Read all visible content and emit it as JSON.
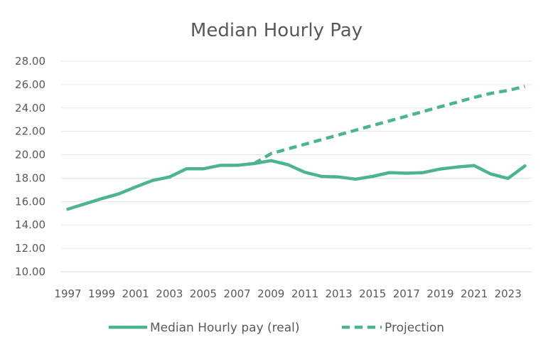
{
  "chart_data": {
    "type": "line",
    "title": "Median Hourly Pay",
    "xlabel": "",
    "ylabel": "",
    "ylim": [
      10,
      28
    ],
    "y_ticks": [
      "10.00",
      "12.00",
      "14.00",
      "16.00",
      "18.00",
      "20.00",
      "22.00",
      "24.00",
      "26.00",
      "28.00"
    ],
    "x_ticks": [
      "1997",
      "1999",
      "2001",
      "2003",
      "2005",
      "2007",
      "2009",
      "2011",
      "2013",
      "2015",
      "2017",
      "2019",
      "2021",
      "2023"
    ],
    "x": [
      1997,
      1998,
      1999,
      2000,
      2001,
      2002,
      2003,
      2004,
      2005,
      2006,
      2007,
      2008,
      2009,
      2010,
      2011,
      2012,
      2013,
      2014,
      2015,
      2016,
      2017,
      2018,
      2019,
      2020,
      2021,
      2022,
      2023,
      2024
    ],
    "grid": true,
    "legend": "bottom",
    "series": [
      {
        "name": "Median Hourly pay (real)",
        "style": "solid",
        "color": "#4db58d",
        "x": [
          1997,
          1998,
          1999,
          2000,
          2001,
          2002,
          2003,
          2004,
          2005,
          2006,
          2007,
          2008,
          2009,
          2010,
          2011,
          2012,
          2013,
          2014,
          2015,
          2016,
          2017,
          2018,
          2019,
          2020,
          2021,
          2022,
          2023,
          2024
        ],
        "values": [
          15.35,
          15.8,
          16.25,
          16.65,
          17.25,
          17.8,
          18.1,
          18.8,
          18.8,
          19.1,
          19.1,
          19.25,
          19.5,
          19.15,
          18.5,
          18.15,
          18.1,
          17.92,
          18.15,
          18.48,
          18.42,
          18.48,
          18.78,
          18.95,
          19.08,
          18.35,
          17.98,
          19.05
        ]
      },
      {
        "name": "Projection",
        "style": "dashed",
        "color": "#4db58d",
        "x": [
          2008,
          2009,
          2010,
          2011,
          2012,
          2013,
          2014,
          2015,
          2016,
          2017,
          2018,
          2019,
          2020,
          2021,
          2022,
          2023,
          2024
        ],
        "values": [
          19.25,
          20.1,
          20.5,
          20.9,
          21.3,
          21.7,
          22.1,
          22.5,
          22.9,
          23.3,
          23.7,
          24.1,
          24.5,
          24.9,
          25.25,
          25.5,
          25.85
        ]
      }
    ]
  }
}
